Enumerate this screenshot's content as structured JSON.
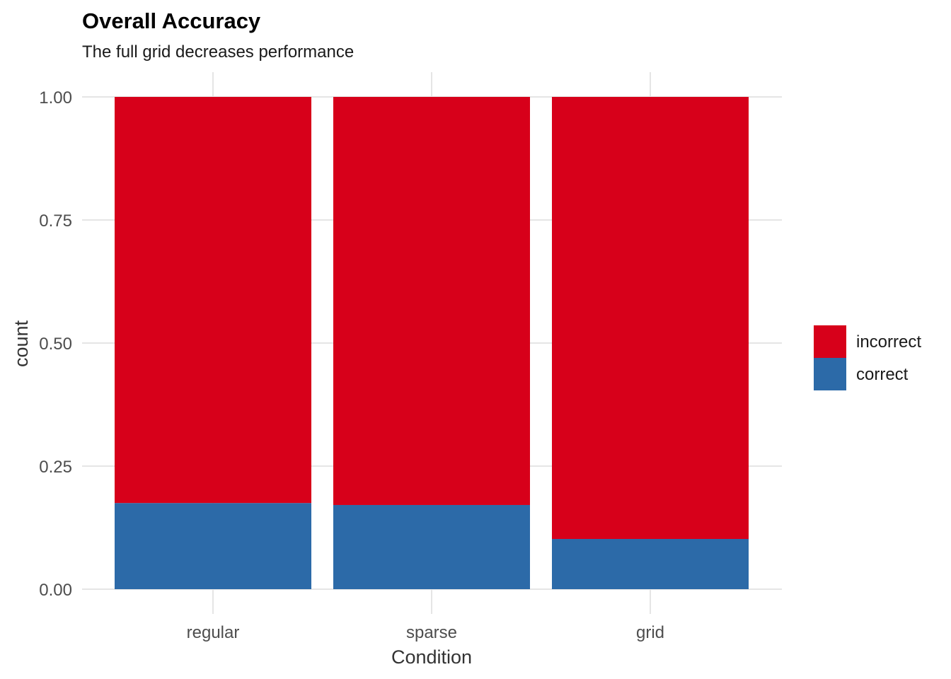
{
  "chart_data": {
    "type": "bar",
    "stacked": true,
    "title": "Overall Accuracy",
    "subtitle": "The full grid decreases performance",
    "xlabel": "Condition",
    "ylabel": "count",
    "categories": [
      "regular",
      "sparse",
      "grid"
    ],
    "series": [
      {
        "name": "correct",
        "color": "#2c6aa8",
        "values": [
          0.175,
          0.171,
          0.102
        ]
      },
      {
        "name": "incorrect",
        "color": "#d7001a",
        "values": [
          0.825,
          0.829,
          0.898
        ]
      }
    ],
    "legend_order": [
      "incorrect",
      "correct"
    ],
    "ylim": [
      0,
      1
    ],
    "yticks": [
      0,
      0.25,
      0.5,
      0.75,
      1.0
    ],
    "ytick_labels": [
      "0.00",
      "0.25",
      "0.50",
      "0.75",
      "1.00"
    ],
    "grid": true,
    "legend_position": "right"
  }
}
